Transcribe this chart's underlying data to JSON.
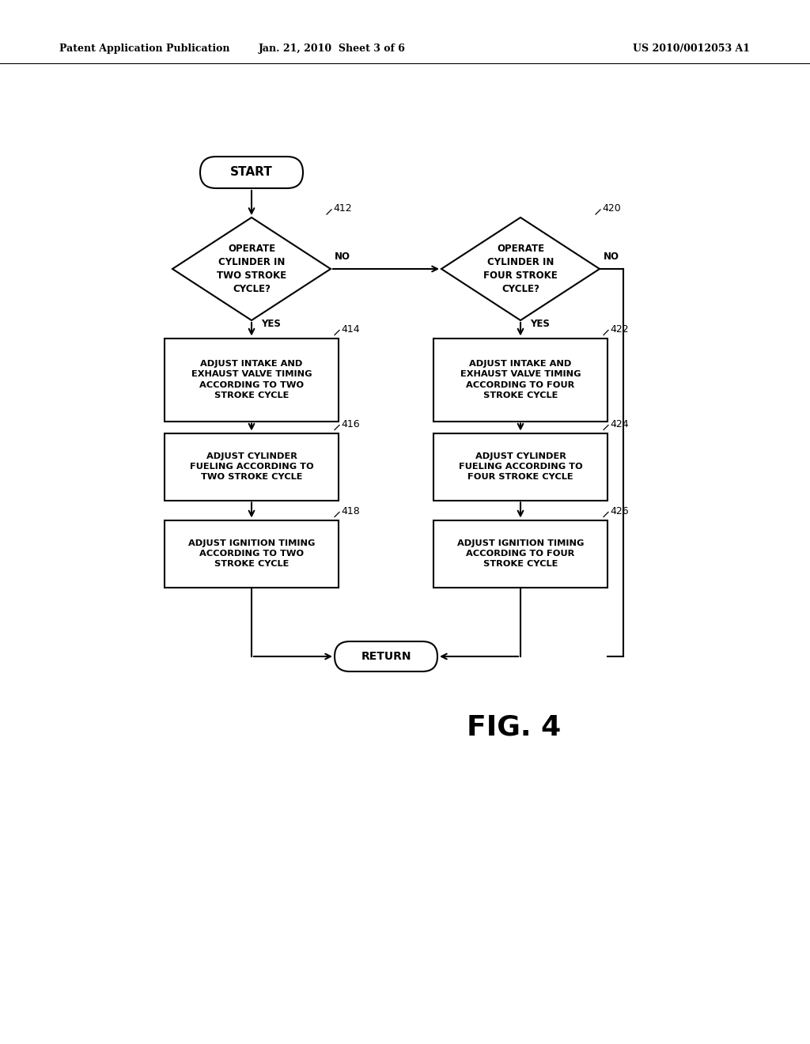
{
  "bg_color": "#ffffff",
  "header_left": "Patent Application Publication",
  "header_center": "Jan. 21, 2010  Sheet 3 of 6",
  "header_right": "US 2010/0012053 A1",
  "fig_label": "FIG. 4",
  "line_color": "#000000",
  "text_color": "#000000"
}
